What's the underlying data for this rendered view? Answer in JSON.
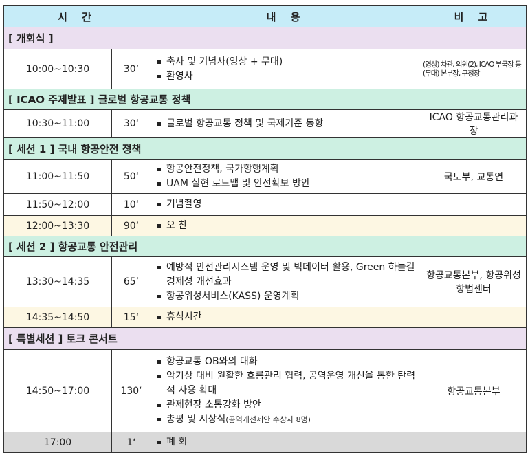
{
  "header": {
    "time": "시 간",
    "content": "내 용",
    "note": "비 고"
  },
  "rows": [
    {
      "type": "section",
      "style": "pink",
      "title": "[ 개회식 ]"
    },
    {
      "type": "item",
      "time": "10:00~10:30",
      "min": "30‘",
      "items": [
        "축사 및 기념사(영상 + 무대)",
        "환영사"
      ],
      "note": [
        "(영상) 차관, 의원(2), ICAO 부국장 등",
        "(무대) 본부장, 구청장"
      ]
    },
    {
      "type": "section",
      "style": "green",
      "title": "[ ICAO 주제발표 ] 글로벌 항공교통 정책"
    },
    {
      "type": "item",
      "time": "10:30~11:00",
      "min": "30‘",
      "items": [
        "글로벌 항공교통 정책 및 국제기준 동향"
      ],
      "note": [
        "ICAO 항공교통관리과장"
      ]
    },
    {
      "type": "section",
      "style": "green",
      "title": "[ 세션 1 ] 국내 항공안전 정책"
    },
    {
      "type": "item",
      "time": "11:00~11:50",
      "min": "50‘",
      "items": [
        "항공안전정책, 국가항행계획",
        "UAM 실현 로드맵 및 안전확보 방안"
      ],
      "note": [
        "국토부, 교통연"
      ]
    },
    {
      "type": "item",
      "time": "11:50~12:00",
      "min": "10‘",
      "items": [
        "기념촬영"
      ],
      "note": []
    },
    {
      "type": "break",
      "time": "12:00~13:30",
      "min": "90‘",
      "items": [
        "오 찬"
      ]
    },
    {
      "type": "section",
      "style": "green",
      "title": "[ 세션 2 ] 항공교통 안전관리"
    },
    {
      "type": "item",
      "time": "13:30~14:35",
      "min": "65’",
      "items": [
        "예방적 안전관리시스템 운영 및 빅데이터 활용, Green 하늘길 경제성 개선효과",
        "항공위성서비스(KASS) 운영계획"
      ],
      "note": [
        "항공교통본부, 항공위성항법센터"
      ]
    },
    {
      "type": "break",
      "time": "14:35~14:50",
      "min": "15‘",
      "items": [
        "휴식시간"
      ]
    },
    {
      "type": "section",
      "style": "pink",
      "title": "[ 특별세션 ] 토크 콘서트"
    },
    {
      "type": "item",
      "time": "14:50~17:00",
      "min": "130‘",
      "items": [
        "항공교통 OB와의 대화",
        "악기상 대비 원활한 흐름관리 협력, 공역운영 개선을 통한 탄력적 사용 확대",
        "관제현장 소통강화 방안",
        "총평 및 시상식"
      ],
      "items_small": {
        "3": "(공역개선제안 수상자 8명)"
      },
      "note": [
        "항공교통본부"
      ]
    },
    {
      "type": "close",
      "time": "17:00",
      "min": "1‘",
      "items": [
        "폐 회"
      ],
      "note": []
    }
  ],
  "colors": {
    "header": "#c6ecf8",
    "pink": "#ebdff0",
    "green": "#cdf0e2",
    "cream": "#fdf7e3",
    "gray": "#d9d9d9"
  }
}
